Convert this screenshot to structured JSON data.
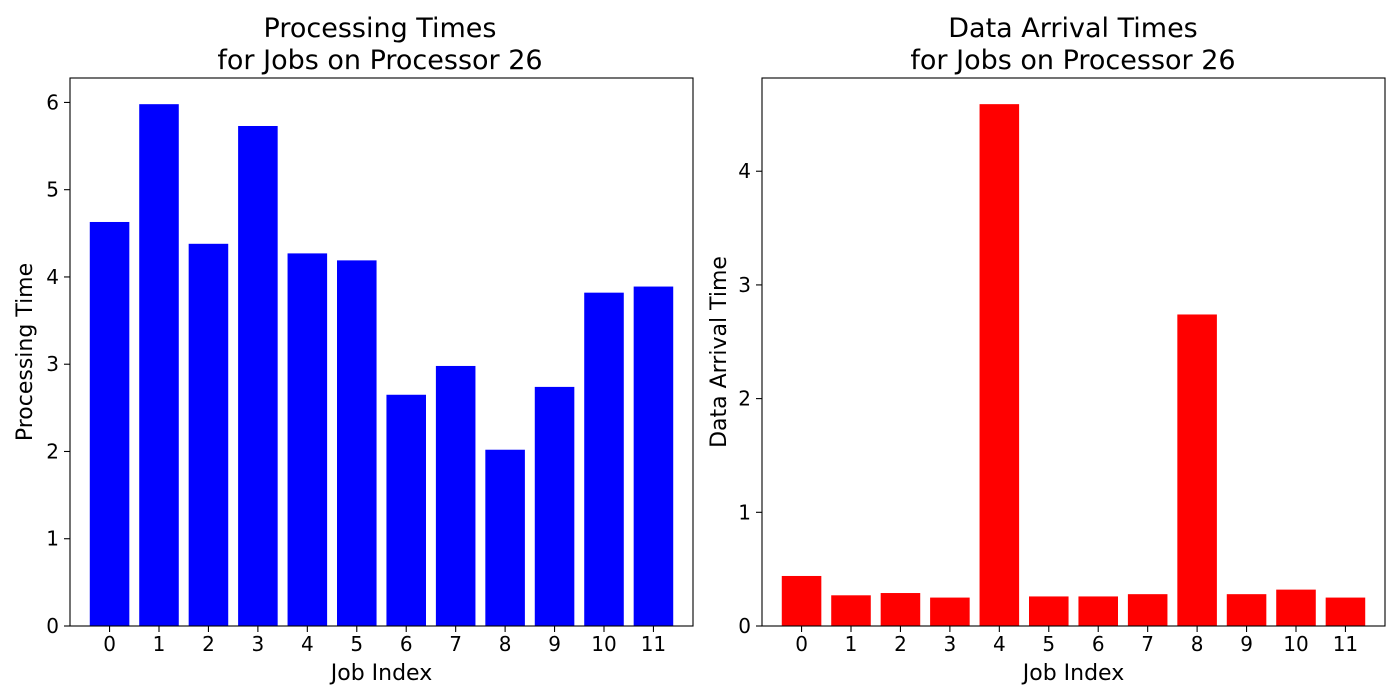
{
  "chart_data": [
    {
      "type": "bar",
      "title": "Processing Times\nfor Jobs on Processor 26",
      "xlabel": "Job Index",
      "ylabel": "Processing Time",
      "categories": [
        "0",
        "1",
        "2",
        "3",
        "4",
        "5",
        "6",
        "7",
        "8",
        "9",
        "10",
        "11"
      ],
      "values": [
        4.63,
        5.98,
        4.38,
        5.73,
        4.27,
        4.19,
        2.65,
        2.98,
        2.02,
        2.74,
        3.82,
        3.89
      ],
      "ylim": [
        0,
        6.28
      ],
      "yticks": [
        0,
        1,
        2,
        3,
        4,
        5,
        6
      ],
      "color": "#0000ff",
      "grid": false
    },
    {
      "type": "bar",
      "title": "Data Arrival Times\nfor Jobs on Processor 26",
      "xlabel": "Job Index",
      "ylabel": "Data Arrival Time",
      "categories": [
        "0",
        "1",
        "2",
        "3",
        "4",
        "5",
        "6",
        "7",
        "8",
        "9",
        "10",
        "11"
      ],
      "values": [
        0.44,
        0.27,
        0.29,
        0.25,
        4.59,
        0.26,
        0.26,
        0.28,
        2.74,
        0.28,
        0.32,
        0.25
      ],
      "ylim": [
        0,
        4.82
      ],
      "yticks": [
        0,
        1,
        2,
        3,
        4
      ],
      "color": "#ff0000",
      "grid": false
    }
  ]
}
